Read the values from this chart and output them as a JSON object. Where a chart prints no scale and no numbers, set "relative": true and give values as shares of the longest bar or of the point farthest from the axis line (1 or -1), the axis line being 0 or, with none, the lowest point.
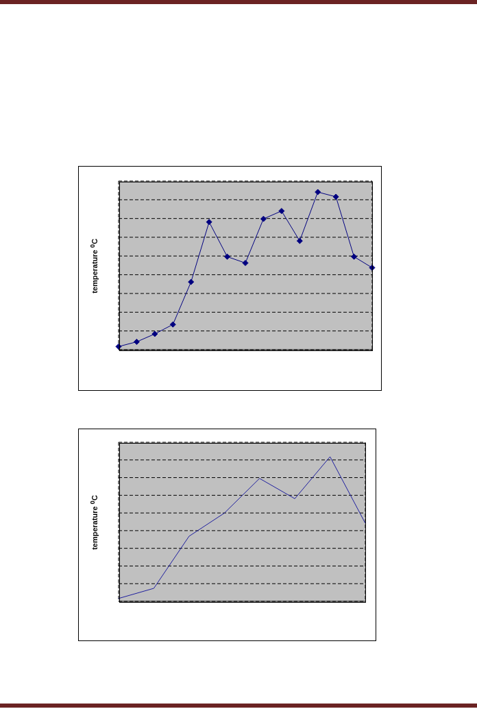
{
  "chart_data": [
    {
      "type": "line",
      "ylabel": "temperature $^{0}$C",
      "relative": true,
      "categories": [
        null,
        null,
        null,
        null,
        null,
        null,
        null,
        null,
        null,
        null,
        null,
        null,
        null,
        null,
        null
      ],
      "grid": true,
      "marker": "diamond",
      "line_style": "solid",
      "legend": false,
      "series": [
        {
          "color": "#000080",
          "values": [
            0.02,
            0.05,
            0.1,
            0.16,
            0.43,
            0.81,
            0.59,
            0.55,
            0.83,
            0.88,
            0.69,
            1,
            0.97,
            0.59,
            0.52
          ]
        }
      ]
    },
    {
      "type": "line",
      "ylabel": "temperature $^{0}$C",
      "relative": true,
      "categories": [
        null,
        null,
        null,
        null,
        null,
        null,
        null,
        null
      ],
      "grid": true,
      "marker": "none",
      "line_style": "solid",
      "legend": false,
      "series": [
        {
          "color": "#1f1f9f",
          "values": [
            0.02,
            0.09,
            0.45,
            0.61,
            0.85,
            0.71,
            1,
            0.54
          ]
        }
      ]
    }
  ]
}
